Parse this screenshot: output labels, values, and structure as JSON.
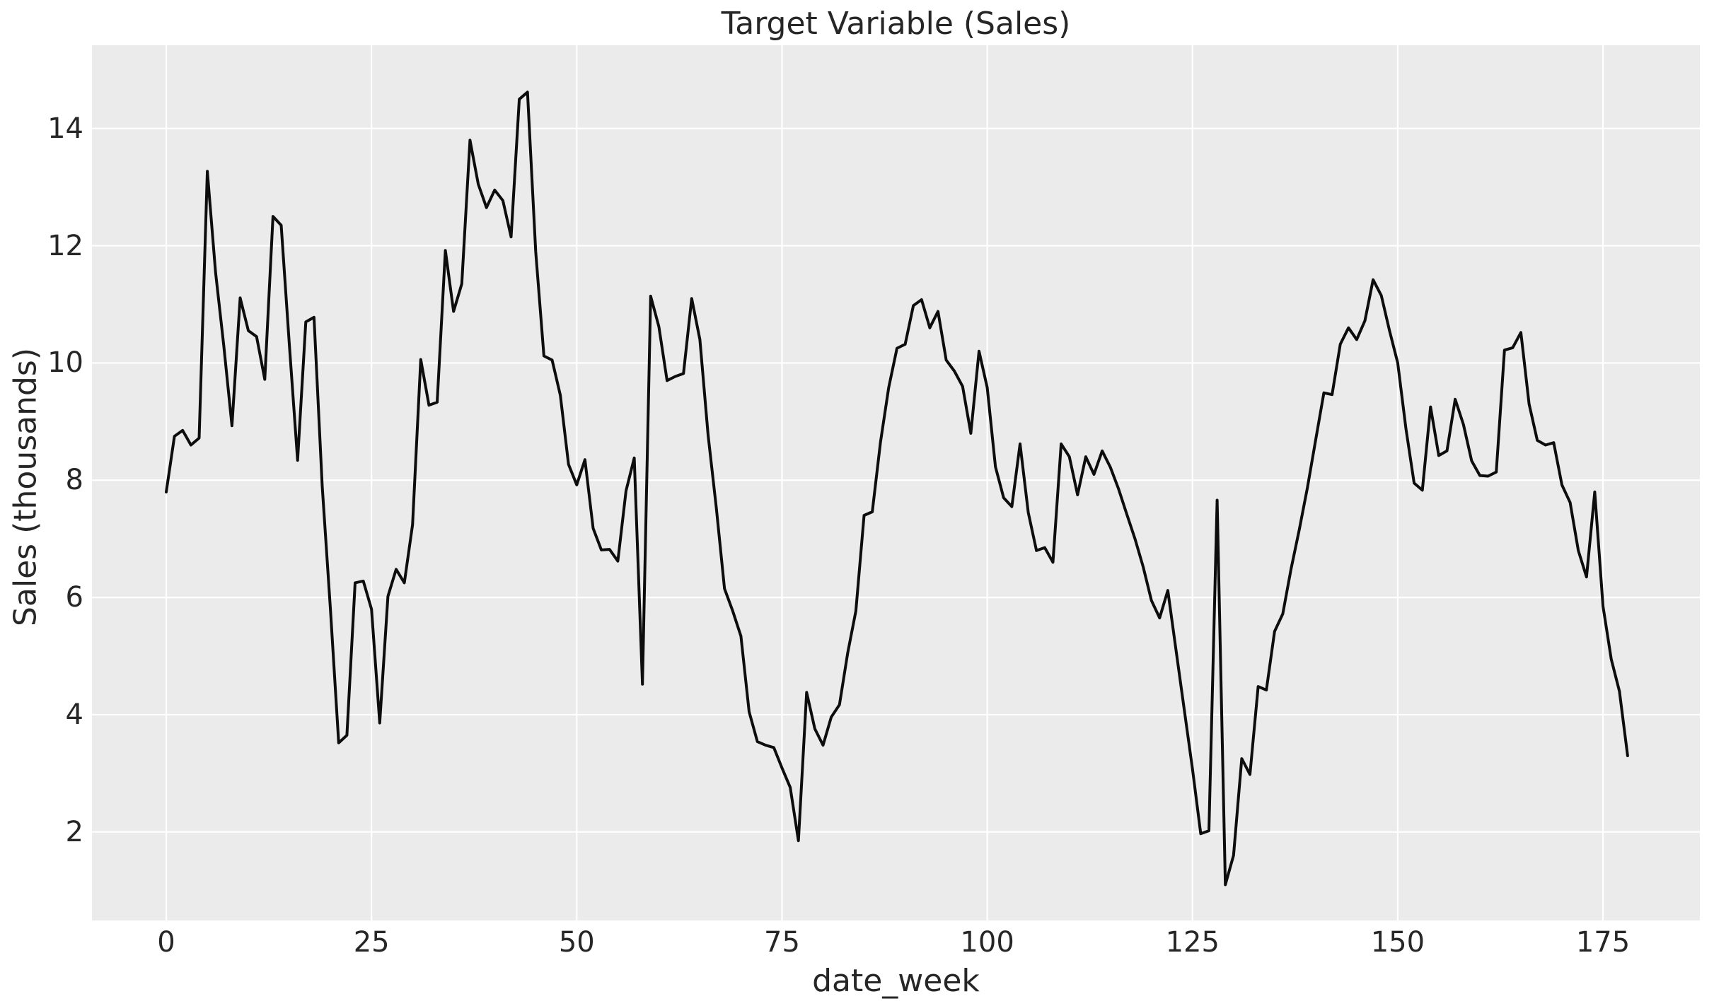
{
  "figure": {
    "title": "Target Variable (Sales)",
    "xlabel": "date_week",
    "ylabel": "Sales (thousands)"
  },
  "colors": {
    "figure_bg": "#ffffff",
    "plot_bg": "#ebebeb",
    "grid": "#ffffff",
    "line": "#0d0d0d",
    "text": "#262626"
  },
  "chart_data": {
    "type": "line",
    "title": "Target Variable (Sales)",
    "xlabel": "date_week",
    "ylabel": "Sales (thousands)",
    "x_is_index": true,
    "n_points": 179,
    "x_start": 0,
    "x_step": 1,
    "xticks": [
      0,
      25,
      50,
      75,
      100,
      125,
      150,
      175
    ],
    "yticks": [
      2,
      4,
      6,
      8,
      10,
      12,
      14
    ],
    "xlim": [
      -9.05,
      186.8
    ],
    "ylim": [
      0.49,
      15.42
    ],
    "grid": true,
    "legend": "none",
    "series": [
      {
        "name": "Sales",
        "values": [
          7.8,
          8.75,
          8.85,
          8.6,
          8.72,
          13.27,
          11.55,
          10.3,
          8.93,
          11.11,
          10.55,
          10.45,
          9.72,
          12.5,
          12.35,
          10.3,
          8.34,
          10.7,
          10.78,
          7.9,
          5.8,
          3.52,
          3.65,
          6.25,
          6.28,
          5.8,
          3.86,
          6.02,
          6.48,
          6.25,
          7.24,
          10.06,
          9.28,
          9.33,
          11.92,
          10.88,
          11.35,
          13.8,
          13.05,
          12.65,
          12.95,
          12.77,
          12.15,
          14.5,
          14.62,
          11.9,
          10.12,
          10.05,
          9.45,
          8.27,
          7.92,
          8.35,
          7.18,
          6.81,
          6.82,
          6.62,
          7.82,
          8.38,
          4.52,
          11.14,
          10.62,
          9.7,
          9.77,
          9.82,
          11.1,
          10.4,
          8.77,
          7.53,
          6.15,
          5.77,
          5.34,
          4.05,
          3.54,
          3.48,
          3.44,
          3.09,
          2.76,
          1.85,
          4.38,
          3.76,
          3.48,
          3.96,
          4.17,
          5.05,
          5.77,
          7.4,
          7.46,
          8.65,
          9.58,
          10.25,
          10.32,
          10.98,
          11.08,
          10.6,
          10.88,
          10.05,
          9.86,
          9.6,
          8.8,
          10.2,
          9.58,
          8.23,
          7.7,
          7.55,
          8.62,
          7.45,
          6.8,
          6.85,
          6.6,
          8.62,
          8.4,
          7.75,
          8.4,
          8.1,
          8.5,
          8.22,
          7.85,
          7.42,
          7.0,
          6.52,
          5.95,
          5.65,
          6.12,
          5.1,
          4.08,
          3.07,
          1.97,
          2.02,
          7.66,
          1.1,
          1.6,
          3.25,
          2.98,
          4.48,
          4.42,
          5.42,
          5.72,
          6.48,
          7.15,
          7.87,
          8.68,
          9.49,
          9.46,
          10.32,
          10.6,
          10.4,
          10.72,
          11.42,
          11.15,
          10.55,
          10.0,
          8.88,
          7.95,
          7.83,
          9.25,
          8.42,
          8.5,
          9.38,
          8.95,
          8.33,
          8.08,
          8.07,
          8.14,
          10.22,
          10.26,
          10.52,
          9.3,
          8.68,
          8.6,
          8.64,
          7.92,
          7.62,
          6.8,
          6.35,
          7.8,
          5.85,
          4.95,
          4.4,
          3.3
        ]
      }
    ]
  }
}
